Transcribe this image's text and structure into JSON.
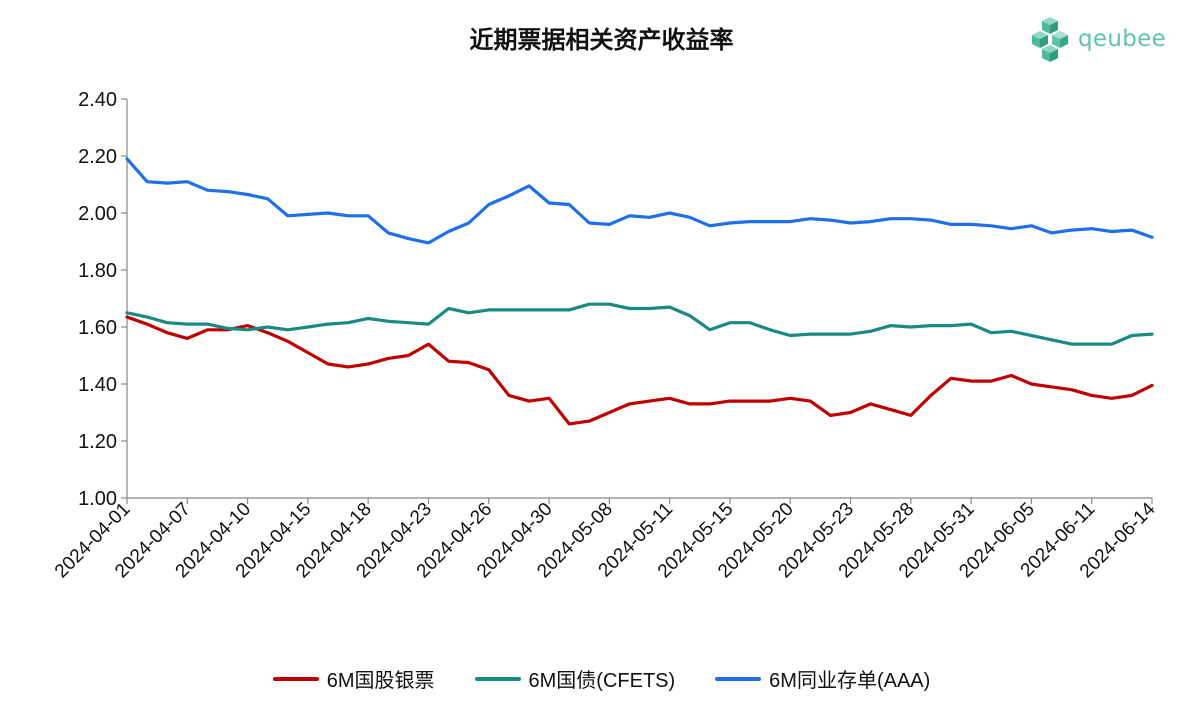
{
  "chart_data": {
    "type": "line",
    "title": "近期票据相关资产收益率",
    "x_tick_labels": [
      "2024-04-01",
      "2024-04-07",
      "2024-04-10",
      "2024-04-15",
      "2024-04-18",
      "2024-04-23",
      "2024-04-26",
      "2024-04-30",
      "2024-05-08",
      "2024-05-11",
      "2024-05-15",
      "2024-05-20",
      "2024-05-23",
      "2024-05-28",
      "2024-05-31",
      "2024-06-05",
      "2024-06-11",
      "2024-06-14"
    ],
    "y_tick_labels": [
      "1.00",
      "1.20",
      "1.40",
      "1.60",
      "1.80",
      "2.00",
      "2.20",
      "2.40"
    ],
    "ylim": [
      1.0,
      2.4
    ],
    "y_step": 0.2,
    "points_per_tick_interval": 3,
    "legend_position": "bottom",
    "grid": false,
    "series": [
      {
        "name": "6M国股银票",
        "color": "#c00000",
        "values": [
          1.635,
          1.61,
          1.58,
          1.56,
          1.59,
          1.59,
          1.605,
          1.58,
          1.55,
          1.51,
          1.47,
          1.46,
          1.47,
          1.49,
          1.5,
          1.54,
          1.48,
          1.475,
          1.45,
          1.36,
          1.34,
          1.35,
          1.26,
          1.27,
          1.3,
          1.33,
          1.34,
          1.35,
          1.33,
          1.33,
          1.34,
          1.34,
          1.34,
          1.35,
          1.34,
          1.29,
          1.3,
          1.33,
          1.31,
          1.29,
          1.36,
          1.42,
          1.41,
          1.41,
          1.43,
          1.4,
          1.39,
          1.38,
          1.36,
          1.35,
          1.36,
          1.395
        ]
      },
      {
        "name": "6M国债(CFETS)",
        "color": "#1a8a82",
        "values": [
          1.65,
          1.635,
          1.615,
          1.61,
          1.61,
          1.595,
          1.59,
          1.6,
          1.59,
          1.6,
          1.61,
          1.615,
          1.63,
          1.62,
          1.615,
          1.61,
          1.665,
          1.65,
          1.66,
          1.66,
          1.66,
          1.66,
          1.66,
          1.68,
          1.68,
          1.665,
          1.665,
          1.67,
          1.64,
          1.59,
          1.615,
          1.615,
          1.59,
          1.57,
          1.575,
          1.575,
          1.575,
          1.585,
          1.605,
          1.6,
          1.605,
          1.605,
          1.61,
          1.58,
          1.585,
          1.57,
          1.555,
          1.54,
          1.54,
          1.54,
          1.57,
          1.575
        ]
      },
      {
        "name": "6M同业存单(AAA)",
        "color": "#1f6fe8",
        "values": [
          2.19,
          2.11,
          2.105,
          2.11,
          2.08,
          2.075,
          2.065,
          2.05,
          1.99,
          1.995,
          2.0,
          1.99,
          1.99,
          1.93,
          1.91,
          1.895,
          1.935,
          1.965,
          2.03,
          2.06,
          2.095,
          2.035,
          2.03,
          1.965,
          1.96,
          1.99,
          1.985,
          2.0,
          1.985,
          1.955,
          1.965,
          1.97,
          1.97,
          1.97,
          1.98,
          1.975,
          1.965,
          1.97,
          1.98,
          1.98,
          1.975,
          1.96,
          1.96,
          1.955,
          1.945,
          1.955,
          1.93,
          1.94,
          1.945,
          1.935,
          1.94,
          1.915
        ]
      }
    ]
  },
  "logo": {
    "text": "qeubee",
    "color": "#5cc4a8"
  }
}
